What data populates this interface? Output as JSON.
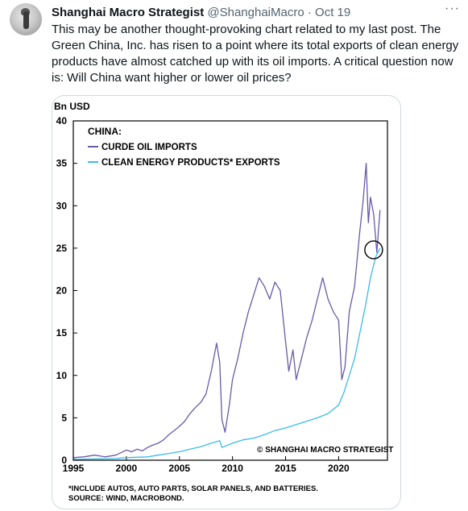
{
  "tweet": {
    "author_name": "Shanghai Macro Strategist",
    "handle": "@ShanghaiMacro",
    "separator": "·",
    "date": "Oct 19",
    "more_label": "···",
    "text": "This may be another thought-provoking chart related to my last post. The Green China, Inc. has risen to a point where its total exports of clean energy products have almost catched up with its oil imports. A critical question now is: Will China want higher or lower oil prices?"
  },
  "colors": {
    "crude_oil": "#6a5aa8",
    "clean_energy": "#3cbbe8",
    "axis": "#000000",
    "text_secondary": "#536471"
  },
  "chart_data": {
    "type": "line",
    "ylabel": "Bn USD",
    "xlim": [
      1995,
      2024.6
    ],
    "ylim": [
      0,
      40
    ],
    "x_ticks": [
      "1995",
      "2000",
      "2005",
      "2010",
      "2015",
      "2020"
    ],
    "y_ticks": [
      "0",
      "5",
      "10",
      "15",
      "20",
      "25",
      "30",
      "35",
      "40"
    ],
    "legend_title": "CHINA:",
    "legend_placement": "top-left",
    "grid": false,
    "watermark": "© SHANGHAI MACRO STRATEGIST",
    "footnote_1": "*INCLUDE AUTOS, AUTO PARTS, SOLAR PANELS, AND BATTERIES.",
    "footnote_2": "SOURCE: WIND, MACROBOND.",
    "annotation": {
      "type": "circle",
      "x": 2023.3,
      "y": 24.8
    },
    "series": [
      {
        "name": "CURDE OIL IMPORTS",
        "x": [
          1995,
          1996,
          1997,
          1998,
          1999,
          2000,
          2000.5,
          2001,
          2001.5,
          2002,
          2002.5,
          2003,
          2003.5,
          2004,
          2004.5,
          2005,
          2005.5,
          2006,
          2006.5,
          2007,
          2007.5,
          2008,
          2008.5,
          2008.8,
          2009,
          2009.3,
          2009.7,
          2010,
          2010.5,
          2011,
          2011.5,
          2012,
          2012.5,
          2013,
          2013.5,
          2014,
          2014.5,
          2015,
          2015.3,
          2015.7,
          2016,
          2016.5,
          2017,
          2017.5,
          2018,
          2018.5,
          2019,
          2019.5,
          2020,
          2020.3,
          2020.6,
          2021,
          2021.5,
          2022,
          2022.3,
          2022.6,
          2022.8,
          2023,
          2023.3,
          2023.6,
          2023.9
        ],
        "values": [
          0.3,
          0.4,
          0.6,
          0.4,
          0.6,
          1.2,
          1.0,
          1.3,
          1.1,
          1.5,
          1.8,
          2.0,
          2.4,
          3.0,
          3.5,
          4.0,
          4.6,
          5.5,
          6.2,
          6.8,
          7.8,
          10.5,
          13.8,
          11.5,
          4.8,
          3.3,
          6.5,
          9.5,
          12.0,
          15.0,
          17.5,
          19.5,
          21.5,
          20.5,
          19.0,
          21.0,
          20.0,
          14.0,
          10.5,
          13.0,
          9.5,
          12.0,
          14.5,
          16.5,
          19.0,
          21.5,
          19.0,
          17.5,
          16.5,
          9.5,
          11.0,
          17.5,
          20.5,
          27.0,
          30.5,
          35.0,
          28.0,
          31.0,
          29.0,
          24.5,
          29.5
        ]
      },
      {
        "name": "CLEAN ENERGY PRODUCTS* EXPORTS",
        "x": [
          1995,
          1997,
          1999,
          2000,
          2001,
          2002,
          2003,
          2004,
          2005,
          2006,
          2007,
          2008,
          2008.8,
          2009,
          2010,
          2011,
          2012,
          2013,
          2014,
          2015,
          2016,
          2017,
          2018,
          2019,
          2020,
          2020.5,
          2021,
          2021.5,
          2022,
          2022.5,
          2023,
          2023.5,
          2023.9
        ],
        "values": [
          0.1,
          0.15,
          0.2,
          0.3,
          0.35,
          0.4,
          0.6,
          0.8,
          1.0,
          1.3,
          1.6,
          2.0,
          2.3,
          1.5,
          2.0,
          2.4,
          2.6,
          3.0,
          3.5,
          3.8,
          4.2,
          4.6,
          5.0,
          5.5,
          6.5,
          8.0,
          10.0,
          12.0,
          15.0,
          18.0,
          21.5,
          24.0,
          25.0
        ]
      }
    ]
  }
}
